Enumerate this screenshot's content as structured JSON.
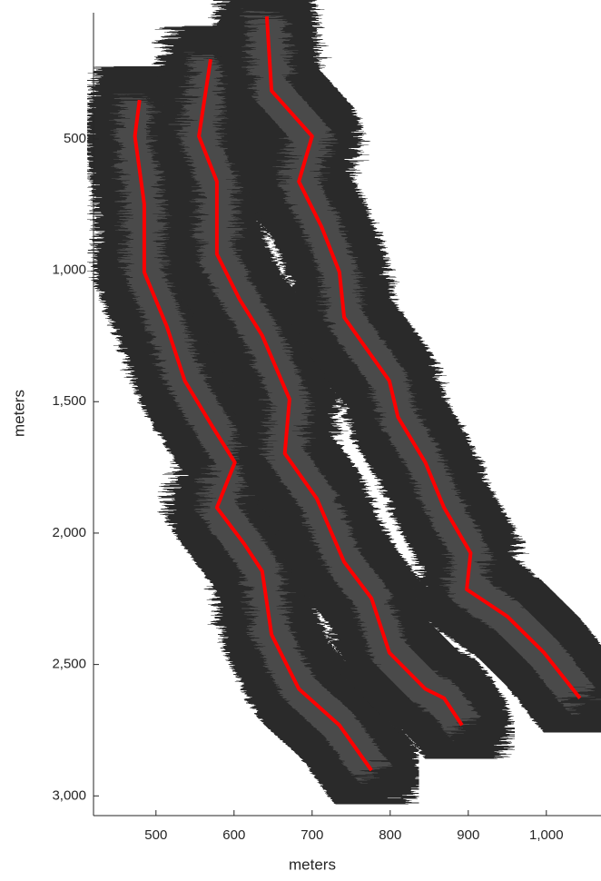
{
  "chart_data": {
    "type": "line",
    "xlabel": "meters",
    "ylabel": "meters",
    "xlim": [
      420,
      1070
    ],
    "ylim": [
      20,
      3075
    ],
    "y_reversed": true,
    "xticks": [
      500,
      600,
      700,
      800,
      900,
      {
        "value": 1000,
        "label": "1,000"
      }
    ],
    "yticks": [
      500,
      {
        "value": 1000,
        "label": "1,000"
      },
      {
        "value": 1500,
        "label": "1,500"
      },
      {
        "value": 2000,
        "label": "2,000"
      },
      {
        "value": 2500,
        "label": "2,500"
      },
      {
        "value": 3000,
        "label": "3,000"
      }
    ],
    "band_color": "#2b2b2b",
    "series": [
      {
        "color": "#ff0000",
        "x": [
          479,
          473,
          485,
          485,
          514,
          537,
          572,
          601,
          578,
          613,
          636,
          648,
          683,
          735,
          776
        ],
        "y": [
          352,
          490,
          748,
          1007,
          1214,
          1421,
          1593,
          1731,
          1903,
          2041,
          2145,
          2386,
          2593,
          2731,
          2903
        ]
      },
      {
        "color": "#ff0000",
        "x": [
          570,
          555,
          578,
          578,
          607,
          636,
          671,
          665,
          706,
          741,
          776,
          799,
          845,
          869,
          892
        ],
        "y": [
          197,
          490,
          662,
          938,
          1110,
          1248,
          1490,
          1697,
          1869,
          2110,
          2248,
          2455,
          2593,
          2628,
          2731
        ]
      },
      {
        "color": "#ff0000",
        "x": [
          642,
          648,
          700,
          683,
          712,
          735,
          741,
          799,
          810,
          845,
          869,
          903,
          898,
          950,
          997,
          1043
        ],
        "y": [
          34,
          317,
          490,
          662,
          834,
          1007,
          1179,
          1421,
          1559,
          1731,
          1903,
          2076,
          2214,
          2317,
          2455,
          2628
        ]
      }
    ]
  }
}
